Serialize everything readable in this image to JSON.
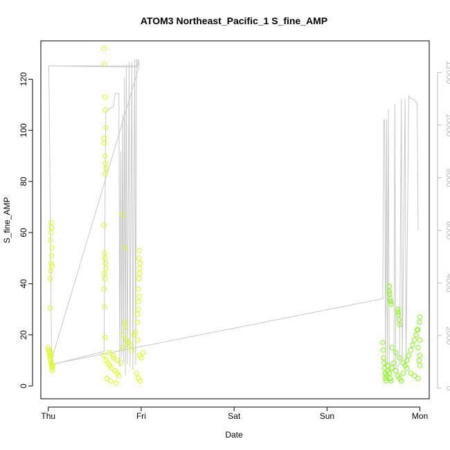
{
  "chart_data": {
    "type": "scatter",
    "title": "ATOM3 Northeast_Pacific_1 S_fine_AMP",
    "xlabel": "Date",
    "ylabel": "S_fine_AMP",
    "x_ticks": [
      "Thu",
      "Fri",
      "Sat",
      "Sun",
      "Mon"
    ],
    "x_tick_days": [
      0,
      1,
      2,
      3,
      4
    ],
    "xlim": [
      -0.08,
      4.1
    ],
    "ylim": [
      -5,
      135
    ],
    "y_ticks": [
      0,
      20,
      40,
      60,
      80,
      100,
      120
    ],
    "y2lim": [
      -400,
      13200
    ],
    "y2_ticks": [
      0,
      2000,
      4000,
      6000,
      8000,
      10000,
      12000
    ],
    "grid": false,
    "colors": {
      "early": "#d9ff00",
      "late": "#7dff00",
      "line": "#c8c8c8",
      "right_axis": "#bdbdbd"
    },
    "series": [
      {
        "marker": "circle-open",
        "points": [
          [
            0.0,
            15
          ],
          [
            0.005,
            14
          ],
          [
            0.01,
            13
          ],
          [
            0.015,
            12
          ],
          [
            0.02,
            11
          ],
          [
            0.025,
            10
          ],
          [
            0.03,
            9
          ],
          [
            0.035,
            8
          ],
          [
            0.04,
            7
          ],
          [
            0.045,
            6
          ],
          [
            0.05,
            8
          ],
          [
            0.03,
            12
          ],
          [
            0.02,
            13.5
          ],
          [
            0.02,
            42
          ],
          [
            0.025,
            45
          ],
          [
            0.03,
            48
          ],
          [
            0.035,
            51
          ],
          [
            0.04,
            54
          ],
          [
            0.025,
            57
          ],
          [
            0.03,
            60
          ],
          [
            0.035,
            62
          ],
          [
            0.03,
            64
          ],
          [
            0.02,
            30.5
          ],
          [
            0.04,
            47
          ],
          [
            0.6,
            132
          ],
          [
            0.605,
            126
          ],
          [
            0.61,
            113
          ],
          [
            0.615,
            108
          ],
          [
            0.62,
            101
          ],
          [
            0.6,
            97
          ],
          [
            0.605,
            95
          ],
          [
            0.61,
            90
          ],
          [
            0.615,
            87
          ],
          [
            0.62,
            85
          ],
          [
            0.61,
            83
          ],
          [
            0.6,
            63
          ],
          [
            0.605,
            52
          ],
          [
            0.61,
            50
          ],
          [
            0.615,
            48
          ],
          [
            0.62,
            46
          ],
          [
            0.605,
            44
          ],
          [
            0.61,
            42
          ],
          [
            0.6,
            38
          ],
          [
            0.605,
            31
          ],
          [
            0.61,
            19
          ],
          [
            0.6,
            12
          ],
          [
            0.62,
            10
          ],
          [
            0.64,
            9
          ],
          [
            0.66,
            8
          ],
          [
            0.68,
            7
          ],
          [
            0.7,
            11
          ],
          [
            0.72,
            6
          ],
          [
            0.74,
            5
          ],
          [
            0.76,
            4
          ],
          [
            0.63,
            3
          ],
          [
            0.67,
            2
          ],
          [
            0.73,
            1
          ],
          [
            0.66,
            13
          ],
          [
            0.7,
            12
          ],
          [
            0.74,
            10
          ],
          [
            0.78,
            9
          ],
          [
            0.8,
            15
          ],
          [
            0.82,
            25
          ],
          [
            0.83,
            23
          ],
          [
            0.81,
            20
          ],
          [
            0.84,
            18
          ],
          [
            0.8,
            67
          ],
          [
            0.82,
            54
          ],
          [
            0.86,
            17
          ],
          [
            0.88,
            16
          ],
          [
            0.9,
            14
          ],
          [
            0.92,
            20
          ],
          [
            0.94,
            21
          ],
          [
            0.96,
            18
          ],
          [
            0.98,
            12
          ],
          [
            1.0,
            11
          ],
          [
            1.02,
            13
          ],
          [
            0.95,
            5
          ],
          [
            0.97,
            3
          ],
          [
            0.99,
            2
          ],
          [
            0.97,
            30
          ],
          [
            0.96,
            25
          ],
          [
            0.97,
            33
          ],
          [
            0.98,
            35
          ],
          [
            0.97,
            38
          ],
          [
            0.975,
            42
          ],
          [
            0.98,
            44
          ],
          [
            0.985,
            46
          ],
          [
            0.99,
            48
          ],
          [
            0.975,
            50
          ],
          [
            0.98,
            53
          ],
          [
            0.96,
            28
          ]
        ]
      },
      {
        "marker": "circle-open",
        "points": [
          [
            3.6,
            17
          ],
          [
            3.605,
            14
          ],
          [
            3.61,
            11
          ],
          [
            3.615,
            9
          ],
          [
            3.62,
            7
          ],
          [
            3.625,
            5
          ],
          [
            3.63,
            3
          ],
          [
            3.635,
            2
          ],
          [
            3.64,
            4
          ],
          [
            3.65,
            6
          ],
          [
            3.66,
            8
          ],
          [
            3.67,
            5
          ],
          [
            3.68,
            3
          ],
          [
            3.69,
            2
          ],
          [
            3.7,
            7
          ],
          [
            3.72,
            9
          ],
          [
            3.74,
            6
          ],
          [
            3.76,
            4
          ],
          [
            3.78,
            3
          ],
          [
            3.8,
            2
          ],
          [
            3.82,
            5
          ],
          [
            3.84,
            8
          ],
          [
            3.86,
            10
          ],
          [
            3.88,
            12
          ],
          [
            3.9,
            14
          ],
          [
            3.92,
            16
          ],
          [
            3.94,
            18
          ],
          [
            3.96,
            20
          ],
          [
            3.97,
            22
          ],
          [
            3.98,
            15
          ],
          [
            3.99,
            10
          ],
          [
            4.0,
            8
          ],
          [
            4.0,
            12
          ],
          [
            4.0,
            18
          ],
          [
            3.995,
            25
          ],
          [
            4.0,
            27
          ],
          [
            3.98,
            22
          ],
          [
            3.67,
            39
          ],
          [
            3.675,
            36
          ],
          [
            3.68,
            34
          ],
          [
            3.685,
            33
          ],
          [
            3.69,
            32
          ],
          [
            3.67,
            37
          ],
          [
            3.76,
            30
          ],
          [
            3.765,
            29
          ],
          [
            3.77,
            28
          ],
          [
            3.775,
            26
          ],
          [
            3.78,
            24
          ],
          [
            3.7,
            15
          ],
          [
            3.74,
            13
          ],
          [
            3.78,
            11
          ],
          [
            3.82,
            9
          ],
          [
            3.86,
            7
          ],
          [
            3.9,
            5
          ],
          [
            3.94,
            4
          ],
          [
            3.98,
            3
          ]
        ]
      }
    ],
    "line": {
      "axis": "right",
      "points": [
        [
          0.0,
          12220
        ],
        [
          0.005,
          12220
        ],
        [
          0.01,
          11000
        ],
        [
          0.015,
          9000
        ],
        [
          0.02,
          7000
        ],
        [
          0.025,
          5000
        ],
        [
          0.03,
          3000
        ],
        [
          0.035,
          1500
        ],
        [
          0.04,
          900
        ],
        [
          0.6,
          1400
        ],
        [
          0.605,
          3500
        ],
        [
          0.61,
          6500
        ],
        [
          0.615,
          9000
        ],
        [
          0.62,
          10500
        ],
        [
          0.65,
          10600
        ],
        [
          0.7,
          10700
        ],
        [
          0.72,
          11200
        ],
        [
          0.76,
          11200
        ],
        [
          0.77,
          800
        ],
        [
          0.78,
          9000
        ],
        [
          0.79,
          1200
        ],
        [
          0.8,
          10400
        ],
        [
          0.81,
          1000
        ],
        [
          0.82,
          11800
        ],
        [
          0.83,
          500
        ],
        [
          0.84,
          12300
        ],
        [
          0.85,
          900
        ],
        [
          0.87,
          12400
        ],
        [
          0.88,
          800
        ],
        [
          0.9,
          12400
        ],
        [
          0.91,
          700
        ],
        [
          0.93,
          12500
        ],
        [
          0.94,
          900
        ],
        [
          0.95,
          12500
        ],
        [
          0.96,
          12200
        ],
        [
          0.0,
          12250
        ],
        [
          0.96,
          12250
        ],
        [
          0.965,
          12300
        ],
        [
          0.97,
          12500
        ],
        [
          0.975,
          12300
        ],
        [
          0.98,
          12250
        ],
        [
          0.02,
          900
        ],
        [
          3.6,
          3400
        ],
        [
          3.61,
          10200
        ],
        [
          3.62,
          10200
        ],
        [
          3.63,
          800
        ],
        [
          3.64,
          10200
        ],
        [
          3.65,
          900
        ],
        [
          3.66,
          10600
        ],
        [
          3.67,
          700
        ],
        [
          3.72,
          700
        ],
        [
          3.73,
          10800
        ],
        [
          3.74,
          800
        ],
        [
          3.78,
          900
        ],
        [
          3.8,
          11000
        ],
        [
          3.81,
          1000
        ],
        [
          3.84,
          11000
        ],
        [
          3.85,
          900
        ],
        [
          3.88,
          11100
        ],
        [
          3.9,
          11000
        ],
        [
          3.92,
          11000
        ],
        [
          3.95,
          10900
        ],
        [
          3.97,
          10800
        ],
        [
          3.98,
          6000
        ]
      ]
    }
  }
}
